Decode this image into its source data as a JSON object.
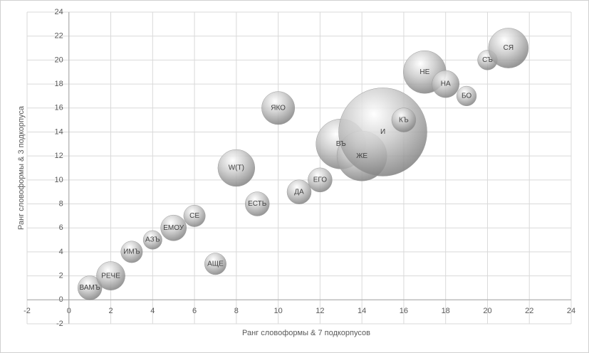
{
  "chart_data": {
    "type": "bubble",
    "x_label": "Ранг словоформы & 7 подкорпусов",
    "y_label": "Ранг словоформы & 3 подкорпуса",
    "labels": [
      "ВАМЪ",
      "РЕЧЕ",
      "ИМЪ",
      "АЗЪ",
      "ЕМОУ",
      "СЕ",
      "АЩЕ",
      "W(Т)",
      "ЕСТЬ",
      "ЯКО",
      "ДА",
      "ЕГО",
      "ВЪ",
      "ЖЕ",
      "И",
      "КЪ",
      "НЕ",
      "НА",
      "БО",
      "СЪ",
      "СЯ"
    ],
    "x": [
      1,
      2,
      3,
      4,
      5,
      6,
      7,
      8,
      9,
      10,
      11,
      12,
      13,
      14,
      15,
      16,
      17,
      18,
      19,
      20,
      21
    ],
    "y": [
      1,
      2,
      4,
      5,
      6,
      7,
      3,
      11,
      8,
      16,
      9,
      10,
      13,
      12,
      14,
      15,
      19,
      18,
      17,
      20,
      21
    ],
    "sizes": [
      7.5,
      10.5,
      6,
      4.5,
      8.5,
      6,
      6,
      17.5,
      7.5,
      14,
      7.5,
      7.5,
      32,
      32,
      100,
      7.5,
      23.5,
      9.5,
      5,
      5,
      20.5
    ],
    "color": "#9a9a9a",
    "xlim": [
      -2,
      24
    ],
    "xticks": [
      -2,
      0,
      2,
      4,
      6,
      8,
      10,
      12,
      14,
      16,
      18,
      20,
      22,
      24
    ],
    "ylim": [
      -2,
      24
    ],
    "yticks": [
      -2,
      0,
      2,
      4,
      6,
      8,
      10,
      12,
      14,
      16,
      18,
      20,
      22,
      24
    ],
    "grid": true
  }
}
